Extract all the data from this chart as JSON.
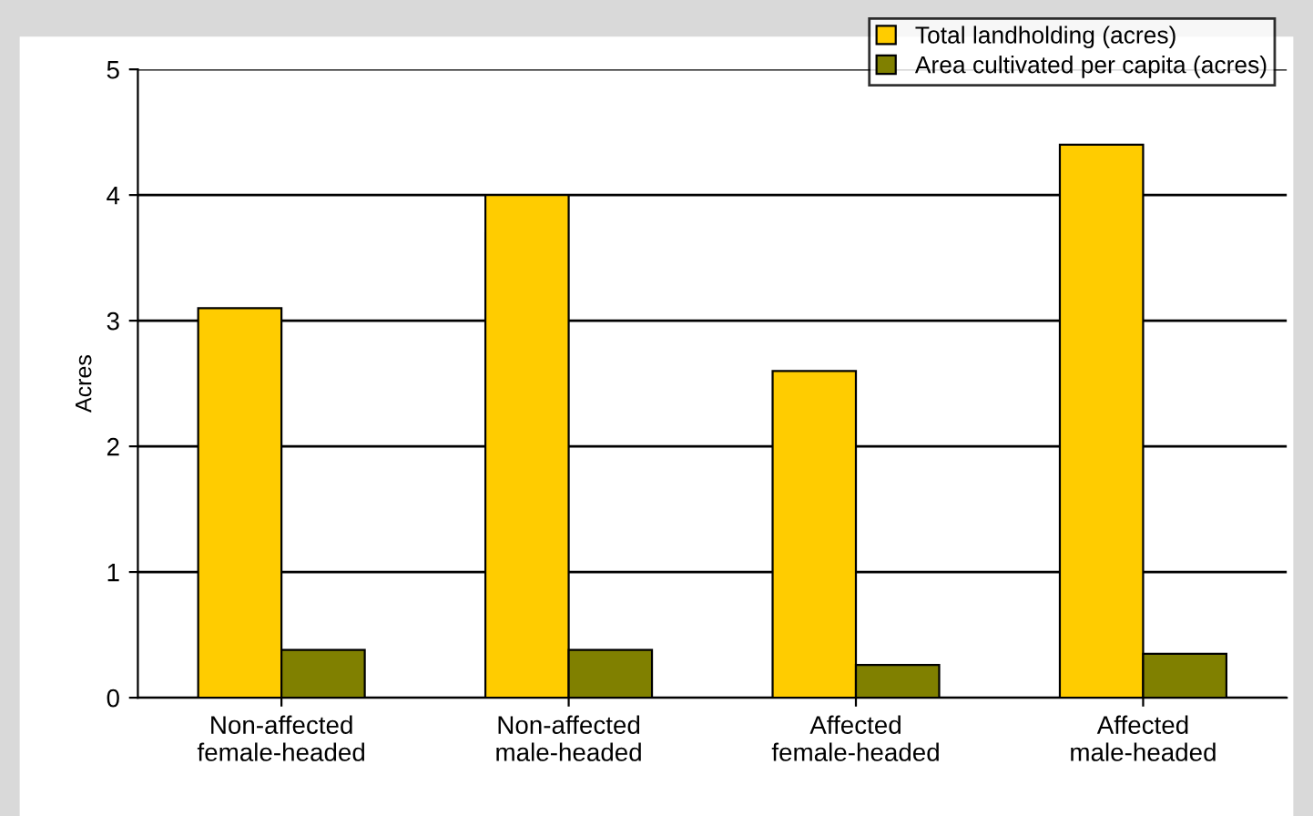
{
  "chart_data": {
    "type": "bar",
    "ylabel": "Acres",
    "categories": [
      "Non-affected\nfemale-headed",
      "Non-affected\nmale-headed",
      "Affected\nfemale-headed",
      "Affected\nmale-headed"
    ],
    "series": [
      {
        "name": "Total landholding (acres)",
        "color": "#ffcc00",
        "values": [
          3.1,
          4.0,
          2.6,
          4.4
        ]
      },
      {
        "name": "Area cultivated per capita (acres)",
        "color": "#808000",
        "values": [
          0.38,
          0.38,
          0.26,
          0.35
        ]
      }
    ],
    "ylim": [
      0,
      5
    ],
    "yticks": [
      0,
      1,
      2,
      3,
      4,
      5
    ],
    "grid": "y",
    "legend": "top right"
  }
}
